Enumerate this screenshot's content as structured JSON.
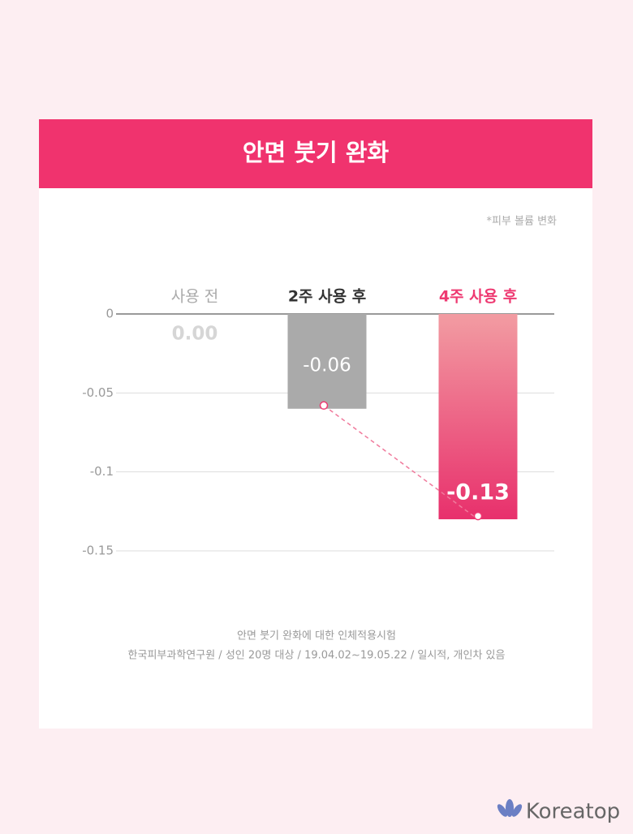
{
  "chart_data": {
    "type": "bar",
    "title": "안면 붓기 완화",
    "subtitle": "*피부 볼륨 변화",
    "categories": [
      "사용 전",
      "2주 사용 후",
      "4주 사용 후"
    ],
    "values": [
      0,
      -0.06,
      -0.13
    ],
    "value_labels": [
      "0.00",
      "-0.06",
      "-0.13"
    ],
    "colors": [
      "#d6d6d6",
      "#aaaaaa",
      "#ee3a72"
    ],
    "category_colors": [
      "#aaaaaa",
      "#333333",
      "#ee3a72"
    ],
    "ylim": [
      -0.15,
      0
    ],
    "yticks": [
      0,
      -0.05,
      -0.1,
      -0.15
    ],
    "grid": true,
    "notes": [
      "안면 붓기 완화에 대한 인체적용시험",
      "한국피부과학연구원 / 성인 20명 대상 / 19.04.02~19.05.22 / 일시적, 개인차 있음"
    ],
    "brand": "Koreatop"
  }
}
